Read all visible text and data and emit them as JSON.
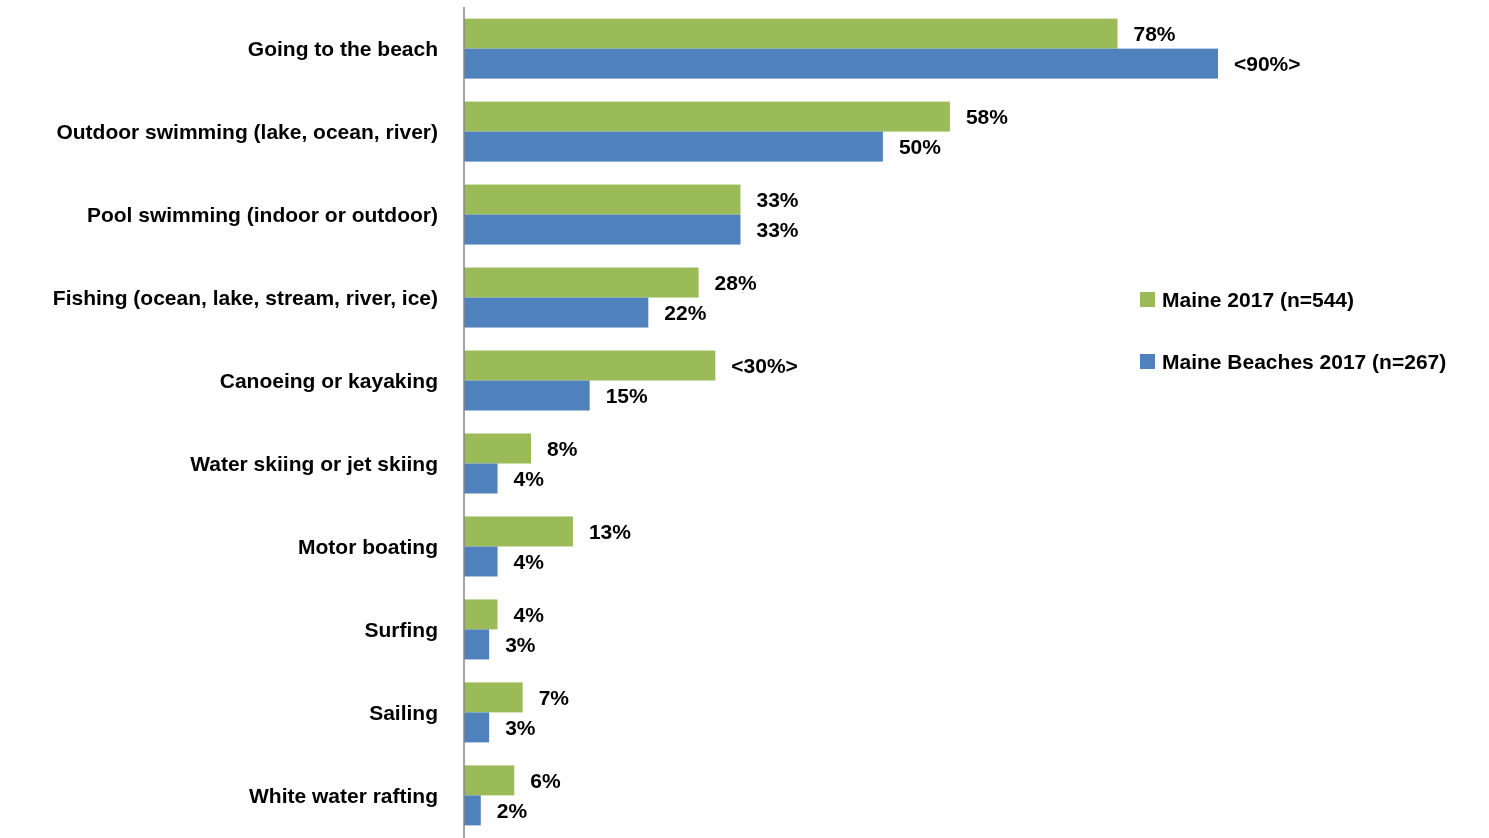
{
  "chart_data": {
    "type": "bar",
    "orientation": "horizontal",
    "categories": [
      "Going to the beach",
      "Outdoor swimming (lake, ocean, river)",
      "Pool swimming (indoor or outdoor)",
      "Fishing (ocean, lake, stream, river, ice)",
      "Canoeing or kayaking",
      "Water skiing or jet skiing",
      "Motor boating",
      "Surfing",
      "Sailing",
      "White water rafting"
    ],
    "series": [
      {
        "name": "Maine 2017 (n=544)",
        "color": "#9bbb59",
        "values": [
          78,
          58,
          33,
          28,
          30,
          8,
          13,
          4,
          7,
          6
        ],
        "value_labels": [
          "78%",
          "58%",
          "33%",
          "28%",
          "<30%>",
          "8%",
          "13%",
          "4%",
          "7%",
          "6%"
        ]
      },
      {
        "name": "Maine Beaches 2017 (n=267)",
        "color": "#4f81bd",
        "values": [
          90,
          50,
          33,
          22,
          15,
          4,
          4,
          3,
          3,
          2
        ],
        "value_labels": [
          "<90%>",
          "50%",
          "33%",
          "22%",
          "15%",
          "4%",
          "4%",
          "3%",
          "3%",
          "2%"
        ]
      }
    ],
    "legend": "right"
  }
}
